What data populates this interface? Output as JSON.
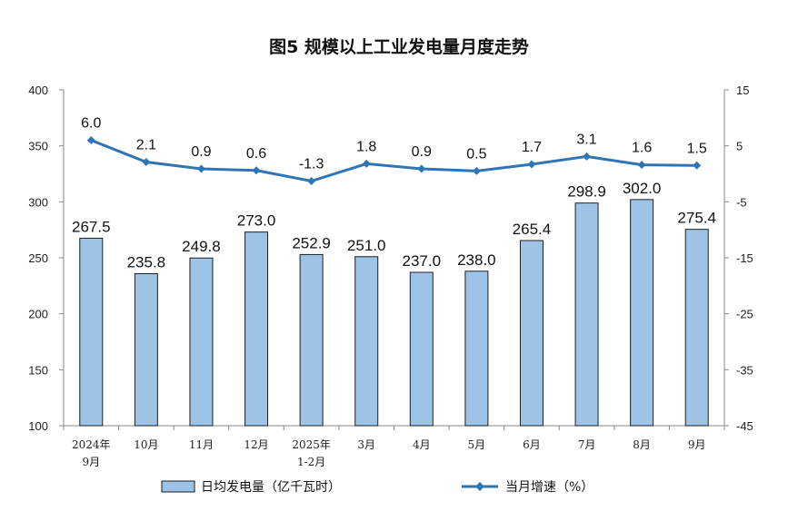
{
  "chart_data": {
    "type": "bar+line",
    "title": "图5  规模以上工业发电量月度走势",
    "categories": [
      [
        "2024年",
        "9月"
      ],
      [
        "10月"
      ],
      [
        "11月"
      ],
      [
        "12月"
      ],
      [
        "2025年",
        "1-2月"
      ],
      [
        "3月"
      ],
      [
        "4月"
      ],
      [
        "5月"
      ],
      [
        "6月"
      ],
      [
        "7月"
      ],
      [
        "8月"
      ],
      [
        "9月"
      ]
    ],
    "series": [
      {
        "name": "日均发电量（亿千瓦时）",
        "type": "bar",
        "axis": "left",
        "values": [
          267.5,
          235.8,
          249.8,
          273.0,
          252.9,
          251.0,
          237.0,
          238.0,
          265.4,
          298.9,
          302.0,
          275.4
        ],
        "labels": [
          "267.5",
          "235.8",
          "249.8",
          "273.0",
          "252.9",
          "251.0",
          "237.0",
          "238.0",
          "265.4",
          "298.9",
          "302.0",
          "275.4"
        ]
      },
      {
        "name": "当月增速（%）",
        "type": "line",
        "axis": "right",
        "values": [
          6.0,
          2.1,
          0.9,
          0.6,
          -1.3,
          1.8,
          0.9,
          0.5,
          1.7,
          3.1,
          1.6,
          1.5
        ],
        "labels": [
          "6.0",
          "2.1",
          "0.9",
          "0.6",
          "-1.3",
          "1.8",
          "0.9",
          "0.5",
          "1.7",
          "3.1",
          "1.6",
          "1.5"
        ]
      }
    ],
    "y_left": {
      "ylim": [
        100,
        400
      ],
      "ticks": [
        "100",
        "150",
        "200",
        "250",
        "300",
        "350",
        "400"
      ]
    },
    "y_right": {
      "ylim": [
        -45,
        15
      ],
      "ticks": [
        "-45",
        "-35",
        "-25",
        "-15",
        "-5",
        "5",
        "15"
      ]
    },
    "grid": false,
    "legend_position": "bottom",
    "colors": {
      "bar_fill": "#9dc3e6",
      "bar_stroke": "#1f1f1f",
      "line": "#2e75b6",
      "axis": "#888888"
    }
  }
}
